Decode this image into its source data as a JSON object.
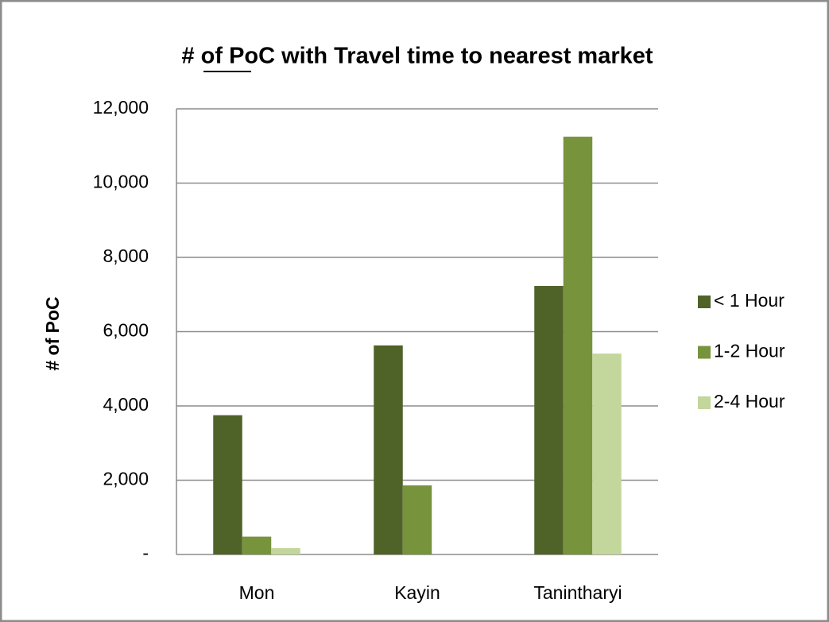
{
  "chart_data": {
    "type": "bar",
    "title": "# of PoC with Travel time to nearest market",
    "y_label": "# of PoC",
    "categories": [
      "Mon",
      "Kayin",
      "Tanintharyi"
    ],
    "series": [
      {
        "name": "< 1 Hour",
        "color": "#4f6228",
        "values": [
          3750,
          5630,
          7230
        ]
      },
      {
        "name": "1-2 Hour",
        "color": "#77933c",
        "values": [
          480,
          1860,
          11250
        ]
      },
      {
        "name": "2-4 Hour",
        "color": "#c3d69b",
        "values": [
          170,
          0,
          5410
        ]
      }
    ],
    "ylim": [
      0,
      12000
    ],
    "yticks": [
      {
        "value": 0,
        "label": "-"
      },
      {
        "value": 2000,
        "label": "2,000"
      },
      {
        "value": 4000,
        "label": "4,000"
      },
      {
        "value": 6000,
        "label": "6,000"
      },
      {
        "value": 8000,
        "label": "8,000"
      },
      {
        "value": 10000,
        "label": "10,000"
      },
      {
        "value": 12000,
        "label": "12,000"
      }
    ],
    "grid": true,
    "legend": "right"
  }
}
